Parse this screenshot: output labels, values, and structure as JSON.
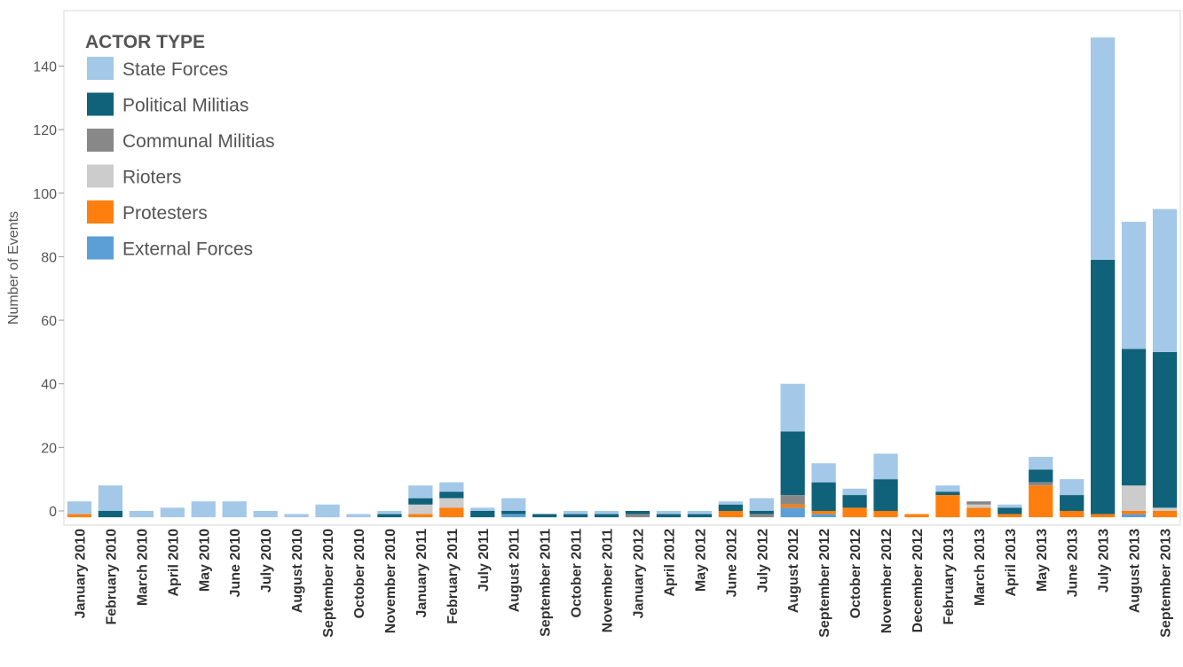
{
  "chart_data": {
    "type": "bar",
    "stacked": true,
    "ylabel": "Number of Events",
    "xlabel": "",
    "ylim": [
      -3,
      155
    ],
    "yticks": [
      0,
      20,
      40,
      60,
      80,
      100,
      120,
      140
    ],
    "grid": false,
    "legend": {
      "title": "ACTOR TYPE",
      "position": "top-left"
    },
    "categories": [
      "January 2010",
      "February 2010",
      "March 2010",
      "April 2010",
      "May 2010",
      "June 2010",
      "July 2010",
      "August 2010",
      "September 2010",
      "October 2010",
      "November 2010",
      "January 2011",
      "February 2011",
      "July 2011",
      "August 2011",
      "September 2011",
      "October 2011",
      "November 2011",
      "January 2012",
      "April 2012",
      "May 2012",
      "June 2012",
      "July 2012",
      "August 2012",
      "September 2012",
      "October 2012",
      "November 2012",
      "December 2012",
      "February 2013",
      "March 2013",
      "April 2013",
      "May 2013",
      "June 2013",
      "July 2013",
      "August 2013",
      "September 2013"
    ],
    "series": [
      {
        "name": "External Forces",
        "color": "#5b9fd6",
        "values": [
          0,
          0,
          0,
          0,
          0,
          0,
          0,
          0,
          0,
          0,
          0,
          0,
          0,
          0,
          1,
          0,
          0,
          0,
          0,
          0,
          0,
          0,
          0,
          3,
          1,
          0,
          0,
          0,
          0,
          0,
          0,
          0,
          0,
          0,
          1,
          0
        ]
      },
      {
        "name": "Protesters",
        "color": "#ff7f0e",
        "values": [
          1,
          0,
          0,
          0,
          0,
          0,
          0,
          0,
          0,
          0,
          0,
          1,
          3,
          0,
          0,
          0,
          0,
          0,
          0,
          0,
          0,
          2,
          0,
          1,
          1,
          3,
          2,
          1,
          7,
          3,
          1,
          10,
          2,
          1,
          1,
          2
        ]
      },
      {
        "name": "Rioters",
        "color": "#cccccc",
        "values": [
          0,
          0,
          0,
          0,
          0,
          0,
          0,
          0,
          0,
          0,
          0,
          3,
          3,
          0,
          0,
          0,
          0,
          0,
          0,
          0,
          0,
          0,
          0,
          0,
          0,
          0,
          0,
          0,
          0,
          1,
          0,
          0,
          0,
          0,
          8,
          1
        ]
      },
      {
        "name": "Communal Militias",
        "color": "#888888",
        "values": [
          0,
          0,
          0,
          0,
          0,
          0,
          0,
          0,
          0,
          0,
          0,
          0,
          0,
          0,
          0,
          0,
          0,
          0,
          1,
          0,
          0,
          0,
          1,
          3,
          0,
          0,
          0,
          0,
          0,
          1,
          0,
          1,
          0,
          0,
          0,
          0
        ]
      },
      {
        "name": "Political Militias",
        "color": "#0f6279",
        "values": [
          0,
          2,
          0,
          0,
          0,
          0,
          0,
          0,
          0,
          0,
          1,
          2,
          2,
          2,
          1,
          1,
          1,
          1,
          1,
          1,
          1,
          2,
          1,
          20,
          9,
          4,
          10,
          0,
          1,
          0,
          2,
          4,
          5,
          80,
          43,
          49
        ]
      },
      {
        "name": "State Forces",
        "color": "#a4c8e8",
        "values": [
          4,
          8,
          2,
          3,
          5,
          5,
          2,
          1,
          4,
          1,
          1,
          4,
          3,
          1,
          4,
          0,
          1,
          1,
          0,
          1,
          1,
          1,
          4,
          15,
          6,
          2,
          8,
          0,
          2,
          0,
          1,
          4,
          5,
          70,
          40,
          45
        ]
      }
    ],
    "legend_order": [
      "State Forces",
      "Political Militias",
      "Communal Militias",
      "Rioters",
      "Protesters",
      "External Forces"
    ]
  }
}
